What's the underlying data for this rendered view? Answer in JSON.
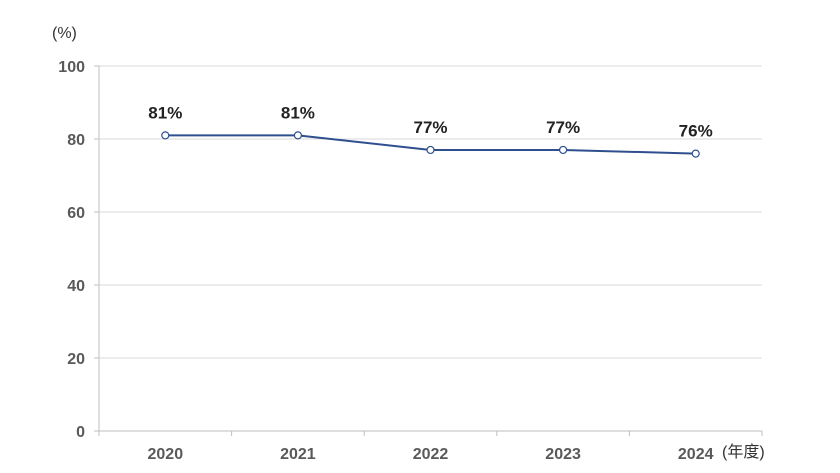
{
  "chart_data": {
    "type": "line",
    "title": "",
    "ylabel": "(%)",
    "xlabel": "(年度)",
    "categories": [
      "2020",
      "2021",
      "2022",
      "2023",
      "2024"
    ],
    "series": [
      {
        "values": [
          81,
          81,
          77,
          77,
          76
        ],
        "labels": [
          "81%",
          "81%",
          "77%",
          "77%",
          "76%"
        ]
      }
    ],
    "ylim": [
      0,
      100
    ],
    "yticks": [
      0,
      20,
      40,
      60,
      80,
      100
    ],
    "grid": true,
    "legend": "none",
    "colors": {
      "line": "#2f4f8f",
      "grid": "#d9d9d9",
      "tick_text": "#595959"
    }
  }
}
